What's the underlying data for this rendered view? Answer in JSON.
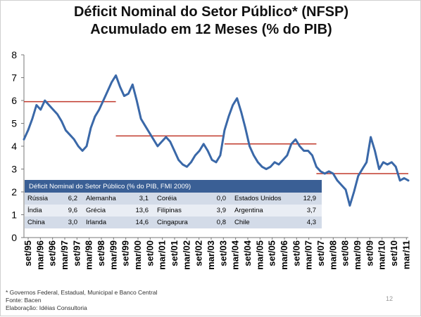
{
  "title_line1": "Déficit Nominal do Setor Público* (NFSP)",
  "title_line2": "Acumulado em 12 Meses (% do PIB)",
  "footnotes": {
    "note": "* Governos Federal, Estadual, Municipal e Banco Central",
    "source": "Fonte: Bacen",
    "prepared": "Elaboração: Idéias Consultoria"
  },
  "page_number": "12",
  "colors": {
    "line": "#3a68a8",
    "average": "#c0392b",
    "table_header": "#3a5f95"
  },
  "chart_data": {
    "type": "line",
    "title": "Déficit Nominal do Setor Público* (NFSP) Acumulado em 12 Meses (% do PIB)",
    "xlabel": "",
    "ylabel": "",
    "ylim": [
      0,
      8
    ],
    "yticks": [
      0,
      1,
      2,
      3,
      4,
      5,
      6,
      7,
      8
    ],
    "grid": false,
    "x_tick_labels": [
      "set/95",
      "mar/96",
      "set/96",
      "mar/97",
      "set/97",
      "mar/98",
      "set/98",
      "mar/99",
      "set/99",
      "mar/00",
      "set/00",
      "mar/01",
      "set/01",
      "mar/02",
      "set/02",
      "mar/03",
      "set/03",
      "mar/04",
      "set/04",
      "mar/05",
      "set/05",
      "mar/06",
      "set/06",
      "mar/07",
      "set/07",
      "mar/08",
      "set/08",
      "mar/09",
      "set/09",
      "mar/10",
      "set/10",
      "mar/11"
    ],
    "series": [
      {
        "values": [
          [
            0,
            4.3
          ],
          [
            1,
            4.7
          ],
          [
            2,
            5.2
          ],
          [
            3,
            5.8
          ],
          [
            4,
            5.6
          ],
          [
            5,
            6.0
          ],
          [
            6,
            5.8
          ],
          [
            7,
            5.6
          ],
          [
            8,
            5.4
          ],
          [
            9,
            5.1
          ],
          [
            10,
            4.7
          ],
          [
            11,
            4.5
          ],
          [
            12,
            4.3
          ],
          [
            13,
            4.0
          ],
          [
            14,
            3.8
          ],
          [
            15,
            4.0
          ],
          [
            16,
            4.8
          ],
          [
            17,
            5.3
          ],
          [
            18,
            5.6
          ],
          [
            19,
            6.0
          ],
          [
            20,
            6.4
          ],
          [
            21,
            6.8
          ],
          [
            22,
            7.1
          ],
          [
            23,
            6.6
          ],
          [
            24,
            6.2
          ],
          [
            25,
            6.3
          ],
          [
            26,
            6.7
          ],
          [
            27,
            6.0
          ],
          [
            28,
            5.2
          ],
          [
            29,
            4.9
          ],
          [
            30,
            4.6
          ],
          [
            31,
            4.3
          ],
          [
            32,
            4.0
          ],
          [
            33,
            4.2
          ],
          [
            34,
            4.4
          ],
          [
            35,
            4.2
          ],
          [
            36,
            3.8
          ],
          [
            37,
            3.4
          ],
          [
            38,
            3.2
          ],
          [
            39,
            3.1
          ],
          [
            40,
            3.3
          ],
          [
            41,
            3.6
          ],
          [
            42,
            3.8
          ],
          [
            43,
            4.1
          ],
          [
            44,
            3.8
          ],
          [
            45,
            3.4
          ],
          [
            46,
            3.3
          ],
          [
            47,
            3.6
          ],
          [
            48,
            4.7
          ],
          [
            49,
            5.3
          ],
          [
            50,
            5.8
          ],
          [
            51,
            6.1
          ],
          [
            52,
            5.5
          ],
          [
            53,
            4.8
          ],
          [
            54,
            4.0
          ],
          [
            55,
            3.6
          ],
          [
            56,
            3.3
          ],
          [
            57,
            3.1
          ],
          [
            58,
            3.0
          ],
          [
            59,
            3.1
          ],
          [
            60,
            3.3
          ],
          [
            61,
            3.2
          ],
          [
            62,
            3.4
          ],
          [
            63,
            3.6
          ],
          [
            64,
            4.1
          ],
          [
            65,
            4.3
          ],
          [
            66,
            4.0
          ],
          [
            67,
            3.8
          ],
          [
            68,
            3.8
          ],
          [
            69,
            3.6
          ],
          [
            70,
            3.1
          ],
          [
            71,
            2.9
          ],
          [
            72,
            2.8
          ],
          [
            73,
            2.9
          ],
          [
            74,
            2.8
          ],
          [
            75,
            2.5
          ],
          [
            76,
            2.3
          ],
          [
            77,
            2.1
          ],
          [
            78,
            1.4
          ],
          [
            79,
            2.0
          ],
          [
            80,
            2.7
          ],
          [
            81,
            3.0
          ],
          [
            82,
            3.3
          ],
          [
            83,
            4.4
          ],
          [
            84,
            3.8
          ],
          [
            85,
            3.0
          ],
          [
            86,
            3.3
          ],
          [
            87,
            3.2
          ],
          [
            88,
            3.3
          ],
          [
            89,
            3.1
          ],
          [
            90,
            2.5
          ],
          [
            91,
            2.6
          ],
          [
            92,
            2.5
          ]
        ]
      }
    ],
    "averages": [
      {
        "from": 0,
        "to": 22,
        "value": 5.95
      },
      {
        "from": 22,
        "to": 48,
        "value": 4.45
      },
      {
        "from": 48,
        "to": 70,
        "value": 4.1
      },
      {
        "from": 70,
        "to": 92,
        "value": 2.8
      }
    ]
  },
  "table": {
    "header": "Déficit Nominal do Setor Público (% do PIB, FMI 2009)",
    "rows": [
      [
        [
          "Rússia",
          "6,2"
        ],
        [
          "Alemanha",
          "3,1"
        ],
        [
          "Coréia",
          "0,0"
        ],
        [
          "Estados Unidos",
          "12,9"
        ]
      ],
      [
        [
          "Índia",
          "9,6"
        ],
        [
          "Grécia",
          "13,6"
        ],
        [
          "Filipinas",
          "3,9"
        ],
        [
          "Argentina",
          "3,7"
        ]
      ],
      [
        [
          "China",
          "3,0"
        ],
        [
          "Irlanda",
          "14,6"
        ],
        [
          "Cingapura",
          "0,8"
        ],
        [
          "Chile",
          "4,3"
        ]
      ]
    ]
  }
}
